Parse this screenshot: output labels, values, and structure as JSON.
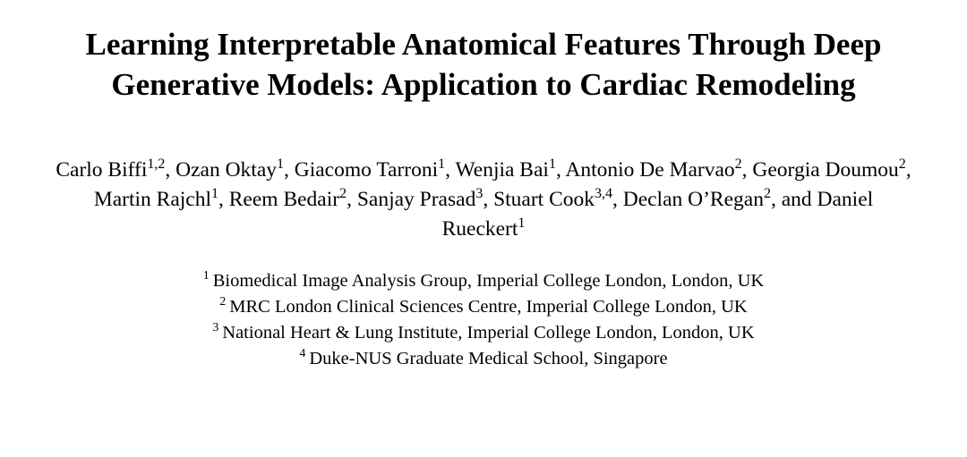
{
  "title": "Learning Interpretable Anatomical Features Through Deep Generative Models: Application to Cardiac Remodeling",
  "authors": [
    {
      "name": "Carlo Biffi",
      "affil": "1,2",
      "sep": ", "
    },
    {
      "name": "Ozan Oktay",
      "affil": "1",
      "sep": ", "
    },
    {
      "name": "Giacomo Tarroni",
      "affil": "1",
      "sep": ", "
    },
    {
      "name": "Wenjia Bai",
      "affil": "1",
      "sep": ", "
    },
    {
      "name": "Antonio De Marvao",
      "affil": "2",
      "sep": ", "
    },
    {
      "name": "Georgia Doumou",
      "affil": "2",
      "sep": ", "
    },
    {
      "name": "Martin Rajchl",
      "affil": "1",
      "sep": ", "
    },
    {
      "name": "Reem Bedair",
      "affil": "2",
      "sep": ", "
    },
    {
      "name": "Sanjay Prasad",
      "affil": "3",
      "sep": ", "
    },
    {
      "name": "Stuart Cook",
      "affil": "3,4",
      "sep": ", "
    },
    {
      "name": "Declan O’Regan",
      "affil": "2",
      "sep": ", and "
    },
    {
      "name": "Daniel Rueckert",
      "affil": "1",
      "sep": ""
    }
  ],
  "affiliations": [
    {
      "num": "1",
      "text": "Biomedical Image Analysis Group, Imperial College London, London, UK"
    },
    {
      "num": "2",
      "text": "MRC London Clinical Sciences Centre, Imperial College London, UK"
    },
    {
      "num": "3",
      "text": "National Heart & Lung Institute, Imperial College London, London, UK"
    },
    {
      "num": "4",
      "text": "Duke-NUS Graduate Medical School, Singapore"
    }
  ]
}
